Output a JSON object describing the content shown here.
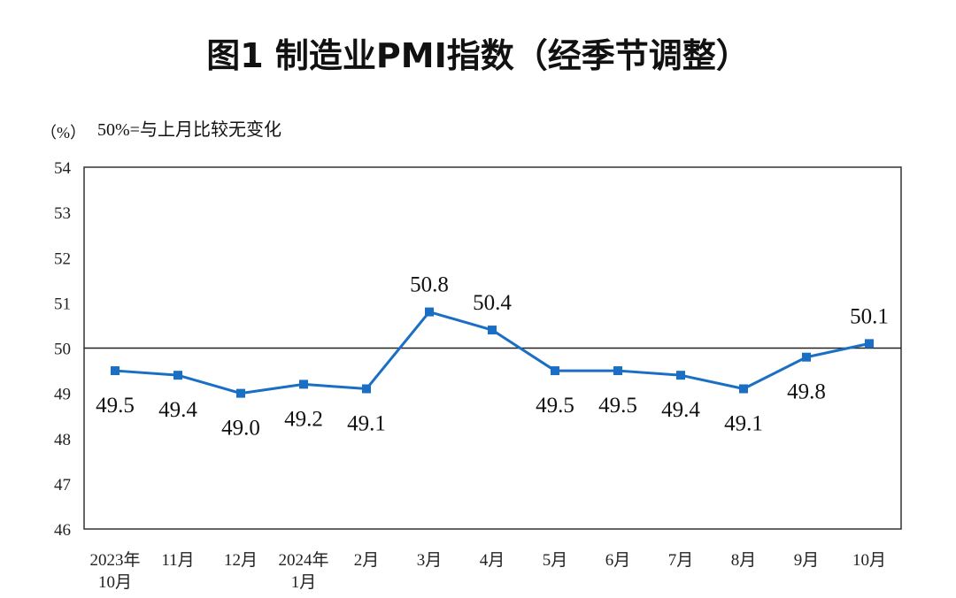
{
  "title": "图1  制造业PMI指数（经季节调整）",
  "chart_data": {
    "type": "line",
    "title": "图1  制造业PMI指数（经季节调整）",
    "y_unit": "（%）",
    "annotation": "50%=与上月比较无变化",
    "ylim": [
      46,
      54
    ],
    "y_ticks": [
      "46",
      "47",
      "48",
      "49",
      "50",
      "51",
      "52",
      "53",
      "54"
    ],
    "reference_value": 50,
    "categories": [
      [
        "2023年",
        "10月"
      ],
      [
        "11月"
      ],
      [
        "12月"
      ],
      [
        "2024年",
        "1月"
      ],
      [
        "2月"
      ],
      [
        "3月"
      ],
      [
        "4月"
      ],
      [
        "5月"
      ],
      [
        "6月"
      ],
      [
        "7月"
      ],
      [
        "8月"
      ],
      [
        "9月"
      ],
      [
        "10月"
      ]
    ],
    "values": [
      49.5,
      49.4,
      49.0,
      49.2,
      49.1,
      50.8,
      50.4,
      49.5,
      49.5,
      49.4,
      49.1,
      49.8,
      50.1
    ],
    "value_labels": [
      "49.5",
      "49.4",
      "49.0",
      "49.2",
      "49.1",
      "50.8",
      "50.4",
      "49.5",
      "49.5",
      "49.4",
      "49.1",
      "49.8",
      "50.1"
    ],
    "line_color": "#1a6fc4",
    "grid": false
  }
}
